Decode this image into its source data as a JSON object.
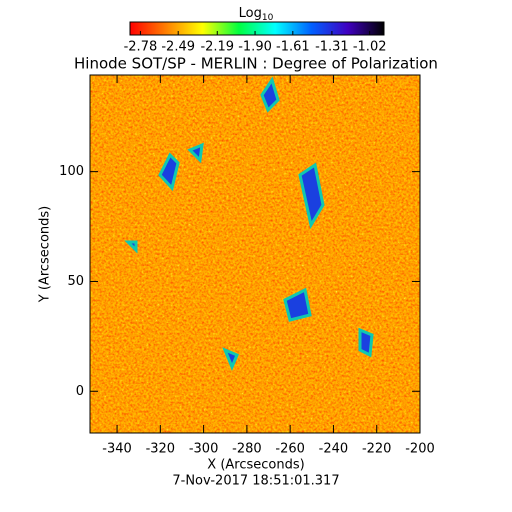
{
  "chart_data": {
    "type": "image",
    "title": "Hinode SOT/SP - MERLIN : Degree of Polarization",
    "x_label": "X (Arcseconds)",
    "y_label": "Y (Arcseconds)",
    "footer": "7-Nov-2017 18:51:01.317",
    "colorbar_label": {
      "base": "Log",
      "subscript": "10"
    },
    "colorbar_lim": [
      -2.86,
      -0.91
    ],
    "colorbar_ticks": [
      {
        "value": -2.78,
        "label": "-2.78"
      },
      {
        "value": -2.49,
        "label": "-2.49"
      },
      {
        "value": -2.19,
        "label": "-2.19"
      },
      {
        "value": -1.9,
        "label": "-1.90"
      },
      {
        "value": -1.61,
        "label": "-1.61"
      },
      {
        "value": -1.31,
        "label": "-1.31"
      },
      {
        "value": -1.02,
        "label": "-1.02"
      }
    ],
    "colormap": [
      "#ff0000",
      "#ff8000",
      "#ffff00",
      "#00ff40",
      "#00ffff",
      "#0060ff",
      "#4000c0",
      "#000000"
    ],
    "xlim": [
      -352.5,
      -200
    ],
    "xticks": [
      -340,
      -320,
      -300,
      -280,
      -260,
      -240,
      -220,
      -200
    ],
    "ylim": [
      -19,
      144
    ],
    "yticks": [
      0,
      50,
      100
    ]
  }
}
